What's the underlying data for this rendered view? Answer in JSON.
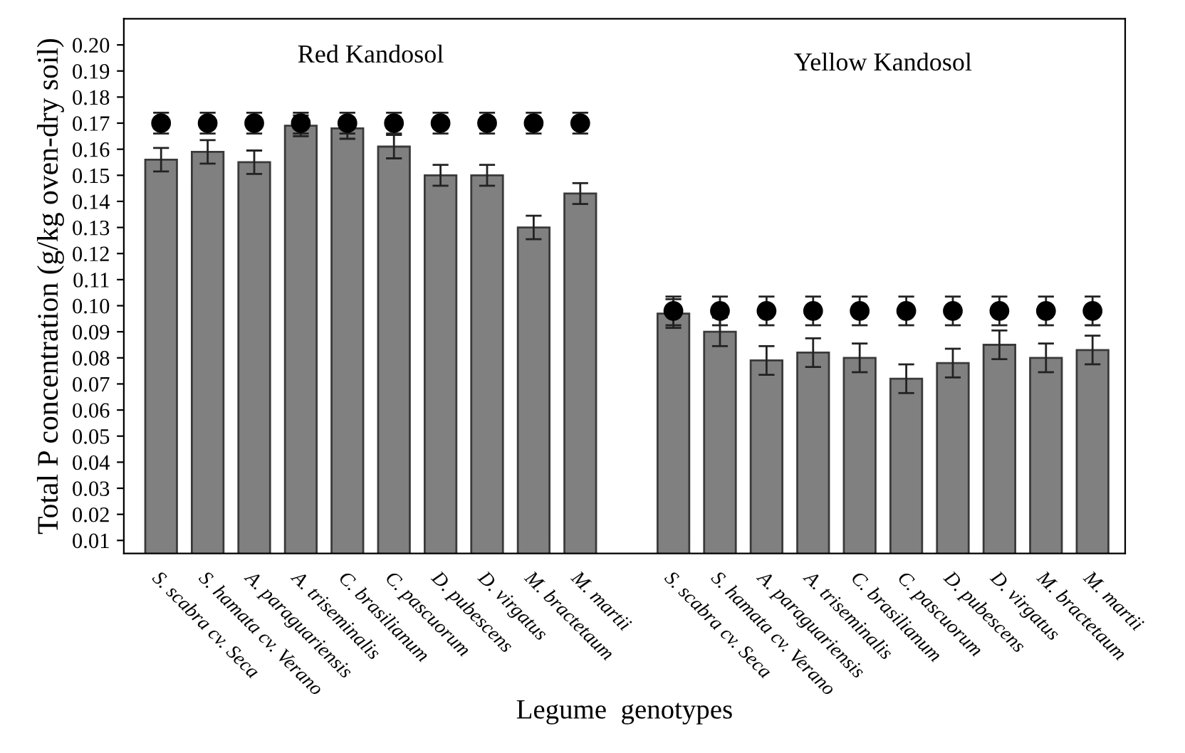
{
  "chart_data": {
    "type": "bar",
    "xlabel": "Legume  genotypes",
    "ylabel": "Total P concentration (g/kg oven-dry soil)",
    "categories": [
      "S. scabra cv. Seca",
      "S. hamata cv. Verano",
      "A. paraguariensis",
      "A. triseminalis",
      "C. brasilianum",
      "C. pascuorum",
      "D. pubescens",
      "D. virgatus",
      "M. bractetaum",
      "M. martii",
      null,
      "S. scabra cv. Seca",
      "S. hamata cv. Verano",
      "A. paraguariensis",
      "A. triseminalis",
      "C. brasilianum",
      "C. pascuorum",
      "D. pubescens",
      "D. virgatus",
      "M. bractetaum",
      "M. martii"
    ],
    "series": [
      {
        "color": "#808080",
        "values": [
          0.156,
          0.159,
          0.155,
          0.169,
          0.168,
          0.161,
          0.15,
          0.15,
          0.13,
          0.143,
          null,
          0.097,
          0.09,
          0.079,
          0.082,
          0.08,
          0.072,
          0.078,
          0.085,
          0.08,
          0.083
        ],
        "errors": [
          0.0045,
          0.0045,
          0.0045,
          0.004,
          0.004,
          0.0045,
          0.004,
          0.004,
          0.0045,
          0.004,
          null,
          0.0055,
          0.0055,
          0.0055,
          0.0055,
          0.0055,
          0.0055,
          0.0055,
          0.0055,
          0.0055,
          0.0055
        ]
      },
      {
        "type": "scatter",
        "color": "#000000",
        "marker": "circle",
        "values": [
          0.17,
          0.17,
          0.17,
          0.17,
          0.17,
          0.17,
          0.17,
          0.17,
          0.17,
          0.17,
          null,
          0.098,
          0.098,
          0.098,
          0.098,
          0.098,
          0.098,
          0.098,
          0.098,
          0.098,
          0.098
        ],
        "errors": [
          0.004,
          0.004,
          0.004,
          0.004,
          0.004,
          0.004,
          0.004,
          0.004,
          0.004,
          0.004,
          null,
          0.0055,
          0.0055,
          0.0055,
          0.0055,
          0.0055,
          0.0055,
          0.0055,
          0.0055,
          0.0055,
          0.0055
        ]
      }
    ],
    "ylim": [
      0.005,
      0.21
    ],
    "yticks": [
      {
        "value": 0.01,
        "label": "0.01"
      },
      {
        "value": 0.02,
        "label": "0.02"
      },
      {
        "value": 0.03,
        "label": "0.03"
      },
      {
        "value": 0.04,
        "label": "0.04"
      },
      {
        "value": 0.05,
        "label": "0.05"
      },
      {
        "value": 0.06,
        "label": "0.06"
      },
      {
        "value": 0.07,
        "label": "0.07"
      },
      {
        "value": 0.08,
        "label": "0.08"
      },
      {
        "value": 0.09,
        "label": "0.09"
      },
      {
        "value": 0.1,
        "label": "0.10"
      },
      {
        "value": 0.11,
        "label": "0.11"
      },
      {
        "value": 0.12,
        "label": "0.12"
      },
      {
        "value": 0.13,
        "label": "0.13"
      },
      {
        "value": 0.14,
        "label": "0.14"
      },
      {
        "value": 0.15,
        "label": "0.15"
      },
      {
        "value": 0.16,
        "label": "0.16"
      },
      {
        "value": 0.17,
        "label": "0.17"
      },
      {
        "value": 0.18,
        "label": "0.18"
      },
      {
        "value": 0.19,
        "label": "0.19"
      },
      {
        "value": 0.2,
        "label": "0.20"
      }
    ],
    "annotations": [
      "Red Kandosol",
      "Yellow Kandosol"
    ],
    "grid": false,
    "legend": false
  }
}
